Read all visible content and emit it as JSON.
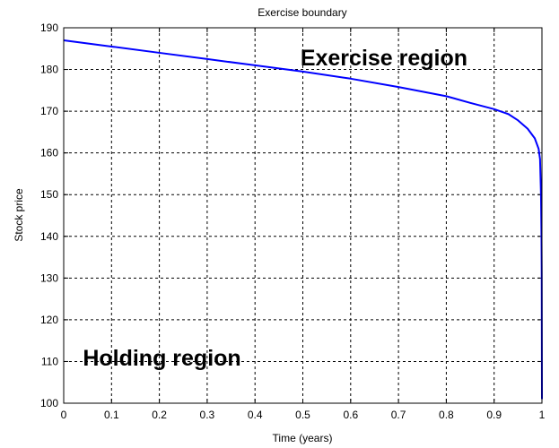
{
  "chart_data": {
    "type": "line",
    "title": "Exercise boundary",
    "xlabel": "Time (years)",
    "ylabel": "Stock price",
    "xlim": [
      0,
      1
    ],
    "ylim": [
      100,
      190
    ],
    "xticks": [
      "0",
      "0.1",
      "0.2",
      "0.3",
      "0.4",
      "0.5",
      "0.6",
      "0.7",
      "0.8",
      "0.9",
      "1"
    ],
    "yticks": [
      "100",
      "110",
      "120",
      "130",
      "140",
      "150",
      "160",
      "170",
      "180",
      "190"
    ],
    "grid": true,
    "series": [
      {
        "color": "#0000ff",
        "x": [
          0,
          0.1,
          0.2,
          0.3,
          0.4,
          0.5,
          0.6,
          0.7,
          0.8,
          0.85,
          0.9,
          0.93,
          0.95,
          0.97,
          0.985,
          0.993,
          0.996,
          0.998,
          0.999,
          0.9995,
          1.0
        ],
        "y": [
          187,
          185.5,
          184,
          182.5,
          181,
          179.5,
          177.8,
          175.8,
          173.6,
          172,
          170.5,
          169.3,
          167.8,
          165.8,
          163.5,
          161,
          158.5,
          150,
          140,
          131,
          101
        ]
      }
    ],
    "annotations": [
      {
        "text": "Exercise region",
        "x": 0.495,
        "y": 181
      },
      {
        "text": "Holding region",
        "x": 0.04,
        "y": 109
      }
    ]
  }
}
